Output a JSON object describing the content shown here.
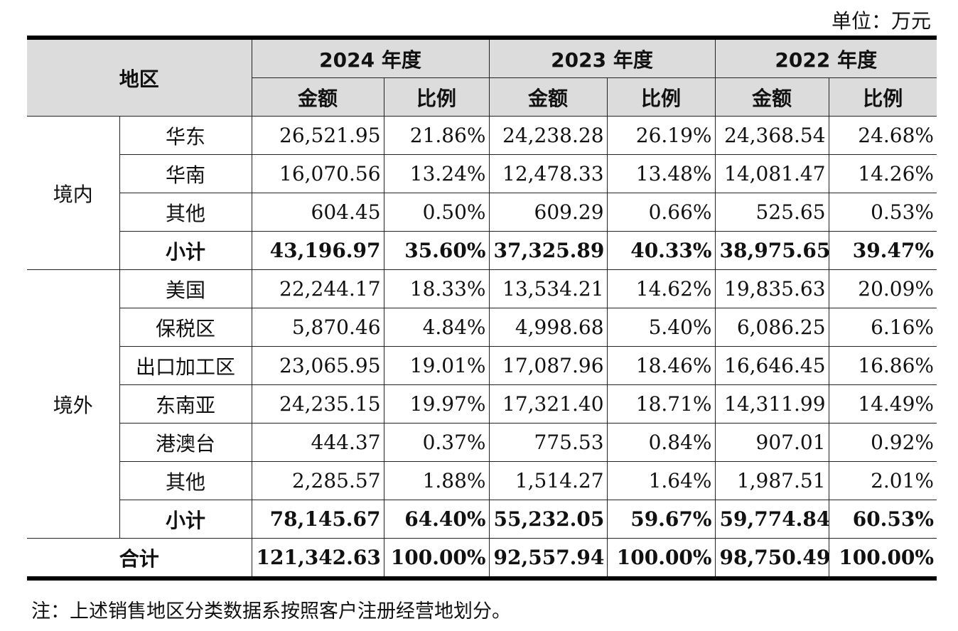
{
  "unit_label": "单位：万元",
  "header": {
    "region": "地区",
    "years": [
      "2024 年度",
      "2023 年度",
      "2022 年度"
    ],
    "amount": "金额",
    "ratio": "比例"
  },
  "domestic": {
    "group": "境内",
    "rows": [
      {
        "name": "华东",
        "v": [
          "26,521.95",
          "21.86%",
          "24,238.28",
          "26.19%",
          "24,368.54",
          "24.68%"
        ]
      },
      {
        "name": "华南",
        "v": [
          "16,070.56",
          "13.24%",
          "12,478.33",
          "13.48%",
          "14,081.47",
          "14.26%"
        ]
      },
      {
        "name": "其他",
        "v": [
          "604.45",
          "0.50%",
          "609.29",
          "0.66%",
          "525.65",
          "0.53%"
        ]
      }
    ],
    "subtotal": {
      "name": "小计",
      "v": [
        "43,196.97",
        "35.60%",
        "37,325.89",
        "40.33%",
        "38,975.65",
        "39.47%"
      ]
    }
  },
  "overseas": {
    "group": "境外",
    "rows": [
      {
        "name": "美国",
        "v": [
          "22,244.17",
          "18.33%",
          "13,534.21",
          "14.62%",
          "19,835.63",
          "20.09%"
        ]
      },
      {
        "name": "保税区",
        "v": [
          "5,870.46",
          "4.84%",
          "4,998.68",
          "5.40%",
          "6,086.25",
          "6.16%"
        ]
      },
      {
        "name": "出口加工区",
        "v": [
          "23,065.95",
          "19.01%",
          "17,087.96",
          "18.46%",
          "16,646.45",
          "16.86%"
        ]
      },
      {
        "name": "东南亚",
        "v": [
          "24,235.15",
          "19.97%",
          "17,321.40",
          "18.71%",
          "14,311.99",
          "14.49%"
        ]
      },
      {
        "name": "港澳台",
        "v": [
          "444.37",
          "0.37%",
          "775.53",
          "0.84%",
          "907.01",
          "0.92%"
        ]
      },
      {
        "name": "其他",
        "v": [
          "2,285.57",
          "1.88%",
          "1,514.27",
          "1.64%",
          "1,987.51",
          "2.01%"
        ]
      }
    ],
    "subtotal": {
      "name": "小计",
      "v": [
        "78,145.67",
        "64.40%",
        "55,232.05",
        "59.67%",
        "59,774.84",
        "60.53%"
      ]
    }
  },
  "total": {
    "name": "合计",
    "v": [
      "121,342.63",
      "100.00%",
      "92,557.94",
      "100.00%",
      "98,750.49",
      "100.00%"
    ]
  },
  "note": "注：上述销售地区分类数据系按照客户注册经营地划分。"
}
